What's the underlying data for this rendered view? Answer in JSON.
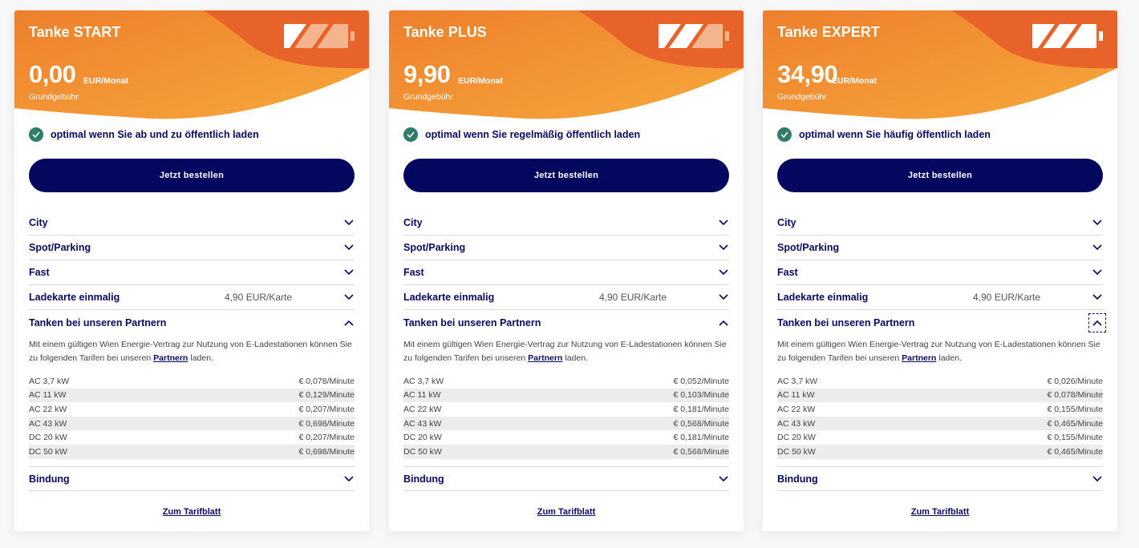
{
  "colors": {
    "orange_light": "#f4a23a",
    "orange": "#ee7f2c",
    "orange_dark": "#e85e24",
    "navy": "#03075e",
    "check": "#2e7d6a"
  },
  "common": {
    "order_label": "Jetzt bestellen",
    "unit": "EUR/Monat",
    "price_sub": "Grundgebühr",
    "accordion": [
      "City",
      "Spot/Parking",
      "Fast",
      "Ladekarte einmalig",
      "Tanken bei unseren Partnern",
      "Bindung"
    ],
    "card_fee": "4,90 EUR/Karte",
    "desc_before": "Mit einem gültigen Wien Energie-Vertrag zur Nutzung von E-Ladestationen können Sie zu folgenden Tarifen bei unseren",
    "desc_link": "Partnern",
    "desc_after": "laden.",
    "rate_labels": [
      "AC 3,7 kW",
      "AC 11 kW",
      "AC 22 kW",
      "AC 43 kW",
      "DC 20 kW",
      "DC 50 kW"
    ],
    "tariff_link": "Zum Tarifblatt"
  },
  "cards": [
    {
      "title": "Tanke START",
      "price": "0,00",
      "battery_level": 0.33,
      "benefit": "optimal wenn Sie ab und zu öffentlich laden",
      "rates": [
        "€ 0,078/Minute",
        "€ 0,129/Minute",
        "€ 0,207/Minute",
        "€ 0,698/Minute",
        "€ 0,207/Minute",
        "€ 0,698/Minute"
      ]
    },
    {
      "title": "Tanke PLUS",
      "price": "9,90",
      "battery_level": 0.67,
      "benefit": "optimal wenn Sie regelmäßig öffentlich laden",
      "rates": [
        "€ 0,052/Minute",
        "€ 0,103/Minute",
        "€ 0,181/Minute",
        "€ 0,568/Minute",
        "€ 0,181/Minute",
        "€ 0,568/Minute"
      ]
    },
    {
      "title": "Tanke EXPERT",
      "price": "34,90",
      "battery_level": 1.0,
      "benefit": "optimal wenn Sie häufig öffentlich laden",
      "rates": [
        "€ 0,026/Minute",
        "€ 0,078/Minute",
        "€ 0,155/Minute",
        "€ 0,465/Minute",
        "€ 0,155/Minute",
        "€ 0,465/Minute"
      ]
    }
  ]
}
